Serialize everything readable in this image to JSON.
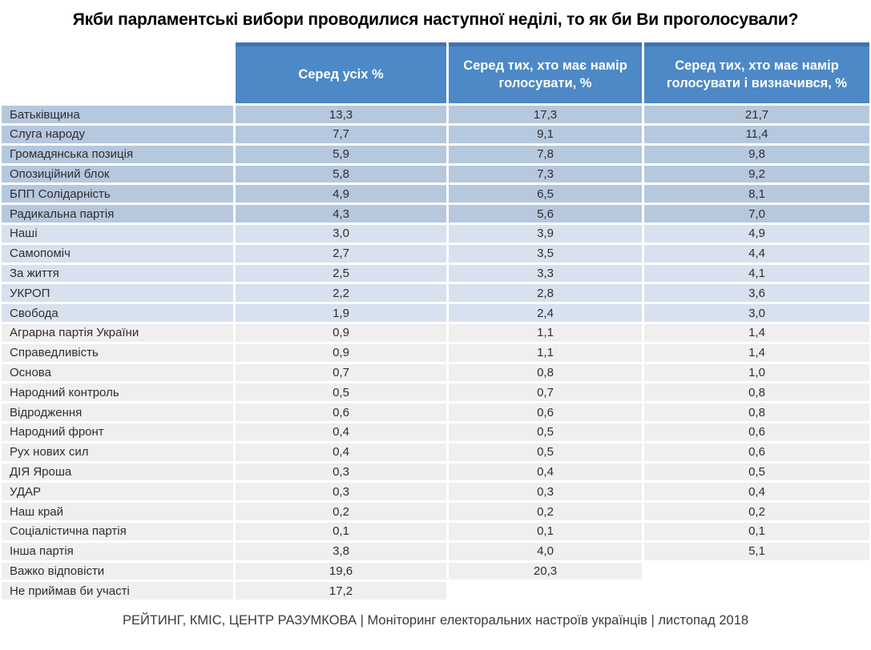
{
  "title": "Якби парламентські вибори проводилися наступної неділі, то як би Ви проголосували?",
  "footer": "РЕЙТИНГ, КМІС, ЦЕНТР РАЗУМКОВА |  Моніторинг електоральних настроїв українців | листопад 2018",
  "colors": {
    "header_bg": "#4d88c7",
    "header_top": "#3e74b0",
    "group_blue": "#b6c8de",
    "group_light_blue": "#d7e1ef",
    "group_gray": "#efefef",
    "text_dark": "#2e2e2e",
    "footer_text": "#3a3a3a"
  },
  "table": {
    "columns": [
      "Серед усіх %",
      "Серед тих, хто має намір голосувати, %",
      "Серед тих, хто має намір голосувати і визначився, %"
    ],
    "rows": [
      {
        "label": "Батьківщина",
        "values": [
          "13,3",
          "17,3",
          "21,7"
        ],
        "group": "g1"
      },
      {
        "label": "Слуга народу",
        "values": [
          "7,7",
          "9,1",
          "11,4"
        ],
        "group": "g1"
      },
      {
        "label": "Громадянська позиція",
        "values": [
          "5,9",
          "7,8",
          "9,8"
        ],
        "group": "g1"
      },
      {
        "label": "Опозиційний блок",
        "values": [
          "5,8",
          "7,3",
          "9,2"
        ],
        "group": "g1"
      },
      {
        "label": "БПП Солідарність",
        "values": [
          "4,9",
          "6,5",
          "8,1"
        ],
        "group": "g1"
      },
      {
        "label": "Радикальна партія",
        "values": [
          "4,3",
          "5,6",
          "7,0"
        ],
        "group": "g1"
      },
      {
        "label": "Наші",
        "values": [
          "3,0",
          "3,9",
          "4,9"
        ],
        "group": "g2"
      },
      {
        "label": "Самопоміч",
        "values": [
          "2,7",
          "3,5",
          "4,4"
        ],
        "group": "g2"
      },
      {
        "label": "За життя",
        "values": [
          "2,5",
          "3,3",
          "4,1"
        ],
        "group": "g2"
      },
      {
        "label": "УКРОП",
        "values": [
          "2,2",
          "2,8",
          "3,6"
        ],
        "group": "g2"
      },
      {
        "label": "Свобода",
        "values": [
          "1,9",
          "2,4",
          "3,0"
        ],
        "group": "g2"
      },
      {
        "label": "Аграрна партія України",
        "values": [
          "0,9",
          "1,1",
          "1,4"
        ],
        "group": "g3"
      },
      {
        "label": "Справедливість",
        "values": [
          "0,9",
          "1,1",
          "1,4"
        ],
        "group": "g3"
      },
      {
        "label": "Основа",
        "values": [
          "0,7",
          "0,8",
          "1,0"
        ],
        "group": "g3"
      },
      {
        "label": "Народний контроль",
        "values": [
          "0,5",
          "0,7",
          "0,8"
        ],
        "group": "g3"
      },
      {
        "label": "Відродження",
        "values": [
          "0,6",
          "0,6",
          "0,8"
        ],
        "group": "g3"
      },
      {
        "label": "Народний фронт",
        "values": [
          "0,4",
          "0,5",
          "0,6"
        ],
        "group": "g3"
      },
      {
        "label": "Рух нових сил",
        "values": [
          "0,4",
          "0,5",
          "0,6"
        ],
        "group": "g3"
      },
      {
        "label": "ДІЯ Яроша",
        "values": [
          "0,3",
          "0,4",
          "0,5"
        ],
        "group": "g3"
      },
      {
        "label": "УДАР",
        "values": [
          "0,3",
          "0,3",
          "0,4"
        ],
        "group": "g3"
      },
      {
        "label": "Наш край",
        "values": [
          "0,2",
          "0,2",
          "0,2"
        ],
        "group": "g3"
      },
      {
        "label": "Соціалістична партія",
        "values": [
          "0,1",
          "0,1",
          "0,1"
        ],
        "group": "g3"
      },
      {
        "label": "Інша партія",
        "values": [
          "3,8",
          "4,0",
          "5,1"
        ],
        "group": "g3"
      },
      {
        "label": "Важко відповісти",
        "values": [
          "19,6",
          "20,3",
          ""
        ],
        "group": "g3"
      },
      {
        "label": "Не приймав би участі",
        "values": [
          "17,2",
          "",
          ""
        ],
        "group": "g3"
      }
    ]
  },
  "chart_data": {
    "type": "table",
    "title": "Якби парламентські вибори проводилися наступної неділі, то як би Ви проголосували?",
    "categories": [
      "Батьківщина",
      "Слуга народу",
      "Громадянська позиція",
      "Опозиційний блок",
      "БПП Солідарність",
      "Радикальна партія",
      "Наші",
      "Самопоміч",
      "За життя",
      "УКРОП",
      "Свобода",
      "Аграрна партія України",
      "Справедливість",
      "Основа",
      "Народний контроль",
      "Відродження",
      "Народний фронт",
      "Рух нових сил",
      "ДІЯ Яроша",
      "УДАР",
      "Наш край",
      "Соціалістична партія",
      "Інша партія",
      "Важко відповісти",
      "Не приймав би участі"
    ],
    "series": [
      {
        "name": "Серед усіх %",
        "values": [
          13.3,
          7.7,
          5.9,
          5.8,
          4.9,
          4.3,
          3.0,
          2.7,
          2.5,
          2.2,
          1.9,
          0.9,
          0.9,
          0.7,
          0.5,
          0.6,
          0.4,
          0.4,
          0.3,
          0.3,
          0.2,
          0.1,
          3.8,
          19.6,
          17.2
        ]
      },
      {
        "name": "Серед тих, хто має намір голосувати, %",
        "values": [
          17.3,
          9.1,
          7.8,
          7.3,
          6.5,
          5.6,
          3.9,
          3.5,
          3.3,
          2.8,
          2.4,
          1.1,
          1.1,
          0.8,
          0.7,
          0.6,
          0.5,
          0.5,
          0.4,
          0.3,
          0.2,
          0.1,
          4.0,
          20.3,
          null
        ]
      },
      {
        "name": "Серед тих, хто має намір голосувати і визначився, %",
        "values": [
          21.7,
          11.4,
          9.8,
          9.2,
          8.1,
          7.0,
          4.9,
          4.4,
          4.1,
          3.6,
          3.0,
          1.4,
          1.4,
          1.0,
          0.8,
          0.8,
          0.6,
          0.6,
          0.5,
          0.4,
          0.2,
          0.1,
          5.1,
          null,
          null
        ]
      }
    ],
    "source": "РЕЙТИНГ, КМІС, ЦЕНТР РАЗУМКОВА | Моніторинг електоральних настроїв українців | листопад 2018"
  }
}
